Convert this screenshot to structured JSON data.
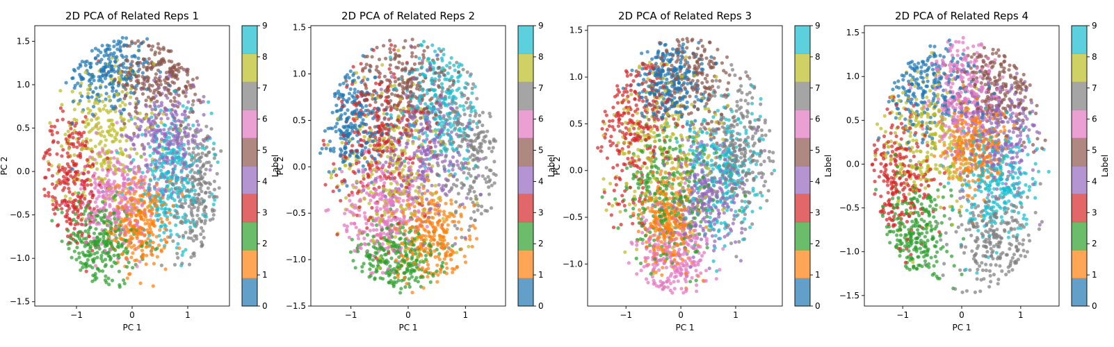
{
  "chart_data": [
    {
      "type": "scatter",
      "title": "2D PCA of Related Reps 1",
      "xlabel": "PC 1",
      "ylabel": "PC 2",
      "xlim": [
        -1.75,
        1.75
      ],
      "ylim": [
        -1.55,
        1.68
      ],
      "xticks": [
        {
          "v": -1,
          "label": "−1"
        },
        {
          "v": 0,
          "label": "0"
        },
        {
          "v": 1,
          "label": "1"
        }
      ],
      "yticks": [
        {
          "v": -1.5,
          "label": "−1.5"
        },
        {
          "v": -1.0,
          "label": "−1.0"
        },
        {
          "v": -0.5,
          "label": "−0.5"
        },
        {
          "v": 0.0,
          "label": "0.0"
        },
        {
          "v": 0.5,
          "label": "0.5"
        },
        {
          "v": 1.0,
          "label": "1.0"
        },
        {
          "v": 1.5,
          "label": "1.5"
        }
      ],
      "colorbar_label": "Label",
      "clusters": [
        {
          "label": 0,
          "cx": -0.45,
          "cy": 1.2,
          "sx": 0.4,
          "sy": 0.28
        },
        {
          "label": 1,
          "cx": 0.15,
          "cy": -0.6,
          "sx": 0.25,
          "sy": 0.25
        },
        {
          "label": 2,
          "cx": -0.6,
          "cy": -0.85,
          "sx": 0.35,
          "sy": 0.25
        },
        {
          "label": 3,
          "cx": -1.1,
          "cy": -0.1,
          "sx": 0.3,
          "sy": 0.4
        },
        {
          "label": 4,
          "cx": 0.6,
          "cy": 0.4,
          "sx": 0.35,
          "sy": 0.3
        },
        {
          "label": 5,
          "cx": 0.5,
          "cy": 1.1,
          "sx": 0.4,
          "sy": 0.25
        },
        {
          "label": 6,
          "cx": -0.3,
          "cy": -0.3,
          "sx": 0.3,
          "sy": 0.3
        },
        {
          "label": 7,
          "cx": 1.2,
          "cy": -0.3,
          "sx": 0.25,
          "sy": 0.45
        },
        {
          "label": 8,
          "cx": -0.5,
          "cy": 0.4,
          "sx": 0.45,
          "sy": 0.45
        },
        {
          "label": 9,
          "cx": 0.7,
          "cy": -0.1,
          "sx": 0.35,
          "sy": 0.4
        }
      ]
    },
    {
      "type": "scatter",
      "title": "2D PCA of Related Reps 2",
      "xlabel": "PC 1",
      "ylabel": "PC 2",
      "xlim": [
        -1.7,
        1.7
      ],
      "ylim": [
        -1.5,
        1.52
      ],
      "xticks": [
        {
          "v": -1,
          "label": "−1"
        },
        {
          "v": 0,
          "label": "0"
        },
        {
          "v": 1,
          "label": "1"
        }
      ],
      "yticks": [
        {
          "v": -1.5,
          "label": "−1.5"
        },
        {
          "v": -1.0,
          "label": "−1.0"
        },
        {
          "v": -0.5,
          "label": "−0.5"
        },
        {
          "v": 0.0,
          "label": "0.0"
        },
        {
          "v": 0.5,
          "label": "0.5"
        },
        {
          "v": 1.0,
          "label": "1.0"
        },
        {
          "v": 1.5,
          "label": "1.5"
        }
      ],
      "colorbar_label": "Label",
      "clusters": [
        {
          "label": 0,
          "cx": -1.0,
          "cy": 0.5,
          "sx": 0.3,
          "sy": 0.35
        },
        {
          "label": 1,
          "cx": 0.4,
          "cy": -0.75,
          "sx": 0.3,
          "sy": 0.25
        },
        {
          "label": 2,
          "cx": -0.2,
          "cy": -1.0,
          "sx": 0.4,
          "sy": 0.2
        },
        {
          "label": 3,
          "cx": -0.5,
          "cy": 0.3,
          "sx": 0.4,
          "sy": 0.4
        },
        {
          "label": 4,
          "cx": 0.3,
          "cy": 0.2,
          "sx": 0.4,
          "sy": 0.4
        },
        {
          "label": 5,
          "cx": -0.1,
          "cy": 0.9,
          "sx": 0.45,
          "sy": 0.3
        },
        {
          "label": 6,
          "cx": -0.5,
          "cy": -0.5,
          "sx": 0.35,
          "sy": 0.3
        },
        {
          "label": 7,
          "cx": 1.1,
          "cy": 0.3,
          "sx": 0.3,
          "sy": 0.5
        },
        {
          "label": 8,
          "cx": -0.2,
          "cy": 0.0,
          "sx": 0.5,
          "sy": 0.5
        },
        {
          "label": 9,
          "cx": 0.6,
          "cy": 0.7,
          "sx": 0.35,
          "sy": 0.35
        }
      ]
    },
    {
      "type": "scatter",
      "title": "2D PCA of Related Reps 3",
      "xlabel": "PC 1",
      "ylabel": "PC 2",
      "xlim": [
        -1.7,
        1.85
      ],
      "ylim": [
        -1.45,
        1.55
      ],
      "xticks": [
        {
          "v": -1,
          "label": "−1"
        },
        {
          "v": 0,
          "label": "0"
        },
        {
          "v": 1,
          "label": "1"
        }
      ],
      "yticks": [
        {
          "v": -1.0,
          "label": "−1.0"
        },
        {
          "v": -0.5,
          "label": "−0.5"
        },
        {
          "v": 0.0,
          "label": "0.0"
        },
        {
          "v": 0.5,
          "label": "0.5"
        },
        {
          "v": 1.0,
          "label": "1.0"
        },
        {
          "v": 1.5,
          "label": "1.5"
        }
      ],
      "colorbar_label": "Label",
      "clusters": [
        {
          "label": 0,
          "cx": -0.2,
          "cy": 1.0,
          "sx": 0.3,
          "sy": 0.25
        },
        {
          "label": 1,
          "cx": -0.2,
          "cy": -0.55,
          "sx": 0.25,
          "sy": 0.25
        },
        {
          "label": 2,
          "cx": -0.2,
          "cy": -0.3,
          "sx": 0.45,
          "sy": 0.35
        },
        {
          "label": 3,
          "cx": -0.9,
          "cy": 0.5,
          "sx": 0.35,
          "sy": 0.45
        },
        {
          "label": 4,
          "cx": 0.4,
          "cy": -0.3,
          "sx": 0.35,
          "sy": 0.3
        },
        {
          "label": 5,
          "cx": 0.2,
          "cy": 1.0,
          "sx": 0.45,
          "sy": 0.3
        },
        {
          "label": 6,
          "cx": -0.2,
          "cy": -0.95,
          "sx": 0.35,
          "sy": 0.25
        },
        {
          "label": 7,
          "cx": 1.1,
          "cy": 0.2,
          "sx": 0.3,
          "sy": 0.4
        },
        {
          "label": 8,
          "cx": -0.3,
          "cy": 0.3,
          "sx": 0.5,
          "sy": 0.5
        },
        {
          "label": 9,
          "cx": 0.8,
          "cy": 0.0,
          "sx": 0.35,
          "sy": 0.35
        }
      ]
    },
    {
      "type": "scatter",
      "title": "2D PCA of Related Reps 4",
      "xlabel": "PC 1",
      "ylabel": "",
      "xlim": [
        -1.65,
        1.65
      ],
      "ylim": [
        -1.62,
        1.58
      ],
      "xticks": [
        {
          "v": -1,
          "label": "−1"
        },
        {
          "v": 0,
          "label": "0"
        },
        {
          "v": 1,
          "label": "1"
        }
      ],
      "yticks": [
        {
          "v": -1.5,
          "label": "−1.5"
        },
        {
          "v": -1.0,
          "label": "−1.0"
        },
        {
          "v": -0.5,
          "label": "−0.5"
        },
        {
          "v": 0.0,
          "label": "0.0"
        },
        {
          "v": 0.5,
          "label": "0.5"
        },
        {
          "v": 1.0,
          "label": "1.0"
        },
        {
          "v": 1.5,
          "label": "1.5"
        }
      ],
      "colorbar_label": "Label",
      "clusters": [
        {
          "label": 0,
          "cx": -0.6,
          "cy": 0.9,
          "sx": 0.4,
          "sy": 0.3
        },
        {
          "label": 1,
          "cx": 0.2,
          "cy": 0.2,
          "sx": 0.25,
          "sy": 0.25
        },
        {
          "label": 2,
          "cx": -0.8,
          "cy": -0.8,
          "sx": 0.3,
          "sy": 0.3
        },
        {
          "label": 3,
          "cx": -1.1,
          "cy": -0.2,
          "sx": 0.3,
          "sy": 0.4
        },
        {
          "label": 4,
          "cx": 0.6,
          "cy": 0.4,
          "sx": 0.35,
          "sy": 0.3
        },
        {
          "label": 5,
          "cx": 0.7,
          "cy": 0.9,
          "sx": 0.4,
          "sy": 0.3
        },
        {
          "label": 6,
          "cx": 0.0,
          "cy": 0.8,
          "sx": 0.3,
          "sy": 0.35
        },
        {
          "label": 7,
          "cx": 0.5,
          "cy": -0.9,
          "sx": 0.4,
          "sy": 0.35
        },
        {
          "label": 8,
          "cx": -0.7,
          "cy": 0.3,
          "sx": 0.4,
          "sy": 0.4
        },
        {
          "label": 9,
          "cx": 0.6,
          "cy": -0.2,
          "sx": 0.35,
          "sy": 0.35
        }
      ]
    }
  ],
  "colorbar": {
    "ticks": [
      "0",
      "1",
      "2",
      "3",
      "4",
      "5",
      "6",
      "7",
      "8",
      "9"
    ],
    "colors": [
      "#1f77b4",
      "#ff7f0e",
      "#2ca02c",
      "#d62728",
      "#9467bd",
      "#8c564b",
      "#e377c2",
      "#7f7f7f",
      "#bcbd22",
      "#17becf"
    ]
  }
}
